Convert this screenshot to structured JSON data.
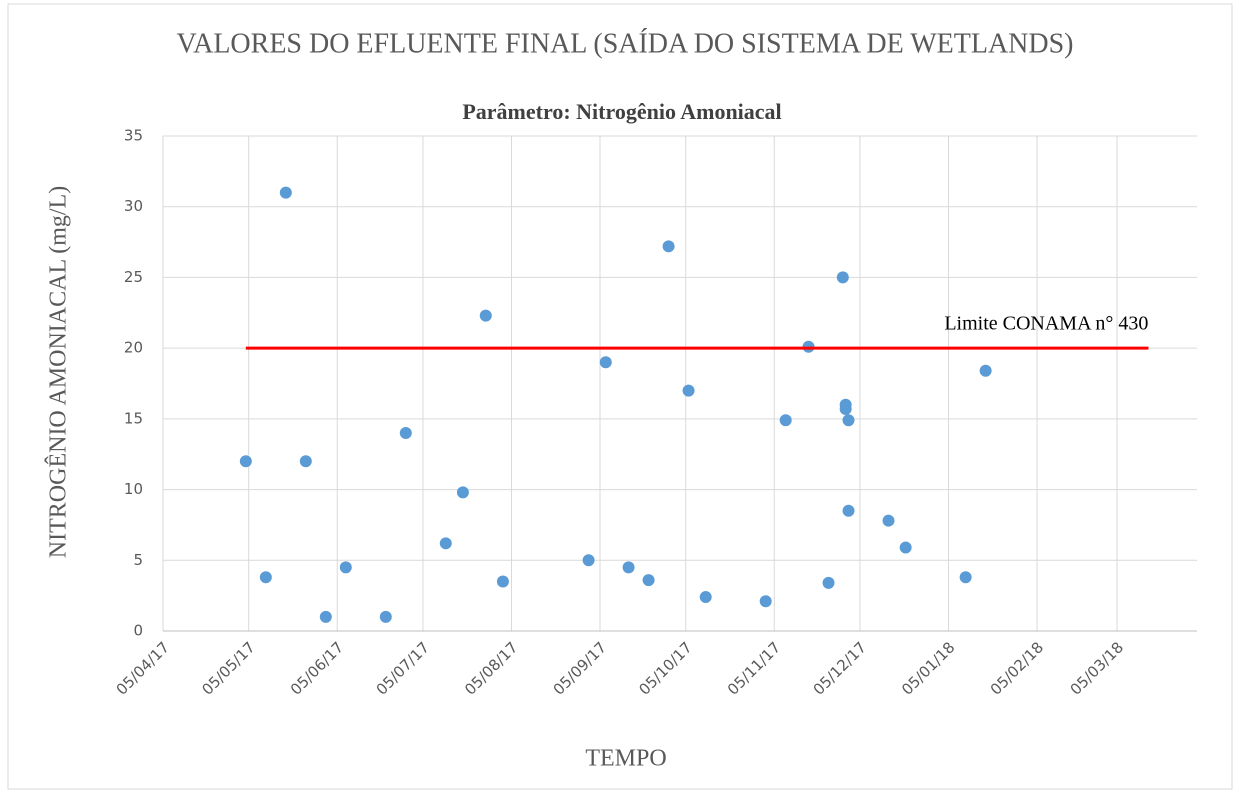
{
  "chart_data": {
    "type": "scatter",
    "title": "VALORES DO EFLUENTE FINAL (SAÍDA DO SISTEMA DE WETLANDS)",
    "subtitle": "Parâmetro: Nitrogênio Amoniacal",
    "xlabel": "TEMPO",
    "ylabel": "NITROGÊNIO AMONIACAL (mg/L)",
    "xlim": [
      "2017-04-05",
      "2018-04-02"
    ],
    "xticks": [
      {
        "value": "2017-04-05",
        "label": "05/04/17"
      },
      {
        "value": "2017-05-05",
        "label": "05/05/17"
      },
      {
        "value": "2017-06-05",
        "label": "05/06/17"
      },
      {
        "value": "2017-07-05",
        "label": "05/07/17"
      },
      {
        "value": "2017-08-05",
        "label": "05/08/17"
      },
      {
        "value": "2017-09-05",
        "label": "05/09/17"
      },
      {
        "value": "2017-10-05",
        "label": "05/10/17"
      },
      {
        "value": "2017-11-05",
        "label": "05/11/17"
      },
      {
        "value": "2017-12-05",
        "label": "05/12/17"
      },
      {
        "value": "2018-01-05",
        "label": "05/01/18"
      },
      {
        "value": "2018-02-05",
        "label": "05/02/18"
      },
      {
        "value": "2018-03-05",
        "label": "05/03/18"
      }
    ],
    "ylim": [
      0,
      35
    ],
    "yticks": [
      0,
      5,
      10,
      15,
      20,
      25,
      30,
      35
    ],
    "grid": true,
    "series": [
      {
        "color": "#5b9bd5",
        "x": [
          "2017-05-04",
          "2017-05-11",
          "2017-05-18",
          "2017-05-25",
          "2017-06-01",
          "2017-06-08",
          "2017-06-22",
          "2017-06-29",
          "2017-07-13",
          "2017-07-19",
          "2017-07-27",
          "2017-08-02",
          "2017-09-01",
          "2017-09-07",
          "2017-09-15",
          "2017-09-22",
          "2017-09-29",
          "2017-10-06",
          "2017-10-12",
          "2017-11-02",
          "2017-11-09",
          "2017-11-17",
          "2017-11-24",
          "2017-11-29",
          "2017-11-30",
          "2017-11-30",
          "2017-12-01",
          "2017-12-01",
          "2017-12-15",
          "2017-12-21",
          "2018-01-11",
          "2018-01-18"
        ],
        "values": [
          12,
          3.8,
          31,
          12,
          1,
          4.5,
          1,
          14,
          6.2,
          9.8,
          22.3,
          3.5,
          5,
          19,
          4.5,
          3.6,
          27.2,
          17,
          2.4,
          2.1,
          14.9,
          20.1,
          3.4,
          25,
          16,
          15.7,
          8.5,
          14.9,
          7.8,
          5.9,
          3.8,
          18.4
        ]
      },
      {
        "type": "line",
        "name": "Limite CONAMA n° 430",
        "color": "#ff0000",
        "x": [
          "2017-05-04",
          "2018-03-16"
        ],
        "values": [
          20,
          20
        ]
      }
    ]
  }
}
